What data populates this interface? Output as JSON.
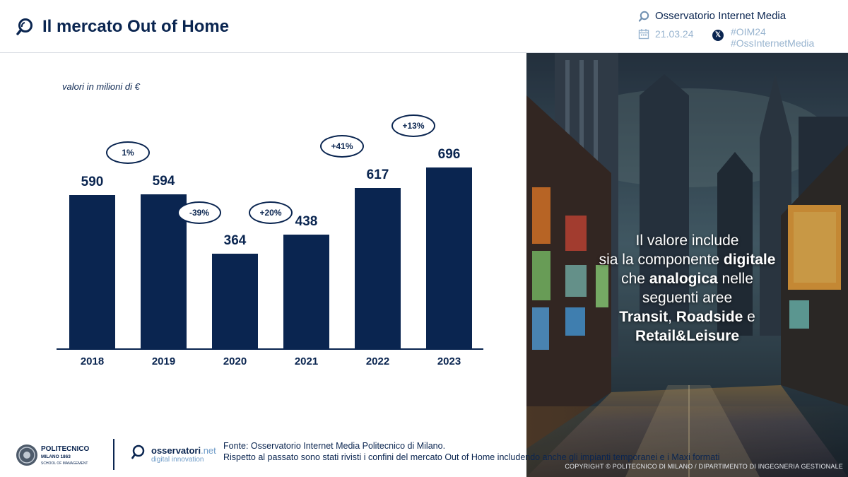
{
  "header": {
    "title": "Il mercato Out of Home",
    "brand": "Osservatorio Internet Media",
    "date": "21.03.24",
    "hashtag1": "#OIM24",
    "hashtag2": "#OssInternetMedia",
    "x_label": "𝕏"
  },
  "chart_data": {
    "type": "bar",
    "title": "Il mercato Out of Home",
    "unit_label": "valori in milioni di €",
    "categories": [
      "2018",
      "2019",
      "2020",
      "2021",
      "2022",
      "2023"
    ],
    "values": [
      590,
      594,
      364,
      438,
      617,
      696
    ],
    "changes": [
      "1%",
      "-39%",
      "+20%",
      "+41%",
      "+13%"
    ],
    "ylim": [
      0,
      696
    ],
    "colors": {
      "bar": "#0a2550"
    }
  },
  "panel": {
    "l1": "Il valore include",
    "l2a": "sia la componente ",
    "l2b": "digitale",
    "l3a": "che ",
    "l3b": "analogica",
    "l3c": " nelle",
    "l4": "seguenti aree",
    "l5a": "Transit",
    "l5b": ", ",
    "l5c": "Roadside",
    "l5d": " e",
    "l6": "Retail&Leisure"
  },
  "copyright": "COPYRIGHT © POLITECNICO DI MILANO / DIPARTIMENTO DI INGEGNERIA GESTIONALE",
  "footer": {
    "polimi_name": "POLITECNICO",
    "polimi_sub": "MILANO 1863",
    "polimi_school": "SCHOOL OF MANAGEMENT",
    "oss_name": "osservatori",
    "oss_net": ".net",
    "oss_sub": "digital innovation",
    "source_line1": "Fonte: Osservatorio Internet Media Politecnico di Milano.",
    "source_line2": "Rispetto al passato sono stati rivisti i confini del mercato Out of Home includendo anche gli impianti temporanei e i Maxi formati"
  }
}
